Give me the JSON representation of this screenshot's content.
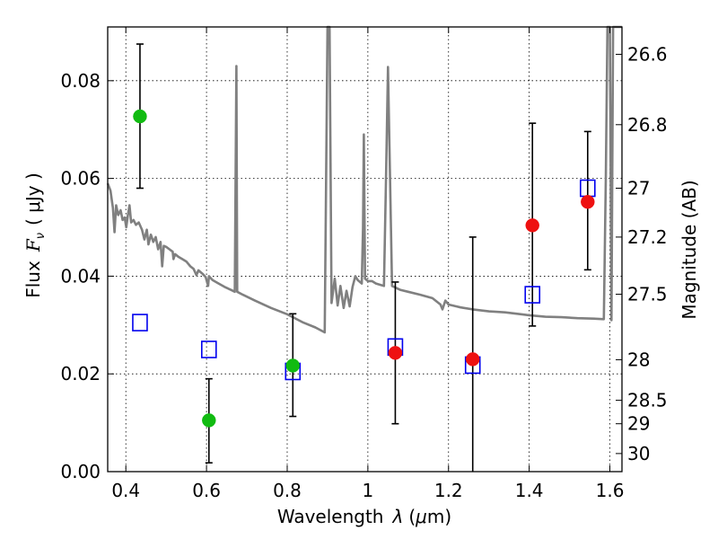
{
  "chart_data": {
    "type": "scatter",
    "xlabel": "Wavelength",
    "xlabel_symbol": "λ",
    "xlabel_unit_open": "(",
    "xlabel_unit_mu": "μ",
    "xlabel_unit_rest": "m)",
    "ylabel_text": "Flux",
    "ylabel_symbol": "F",
    "ylabel_sub": "ν",
    "ylabel_unit": "( μJy )",
    "ylabel_right": "Magnitude (AB)",
    "xlim": [
      0.355,
      1.63
    ],
    "ylim": [
      0.0,
      0.091
    ],
    "x_ticks": [
      0.4,
      0.6,
      0.8,
      1.0,
      1.2,
      1.4,
      1.6
    ],
    "x_tick_labels": [
      "0.4",
      "0.6",
      "0.8",
      "1",
      "1.2",
      "1.4",
      "1.6"
    ],
    "y_ticks": [
      0.0,
      0.02,
      0.04,
      0.06,
      0.08
    ],
    "y_tick_labels": [
      "0.00",
      "0.02",
      "0.04",
      "0.06",
      "0.08"
    ],
    "mag_ticks": [
      {
        "flux": 0.0854,
        "label": "26.6"
      },
      {
        "flux": 0.071,
        "label": "26.8"
      },
      {
        "flux": 0.058,
        "label": "27"
      },
      {
        "flux": 0.048,
        "label": "27.2"
      },
      {
        "flux": 0.0363,
        "label": "27.5"
      },
      {
        "flux": 0.0229,
        "label": "28"
      },
      {
        "flux": 0.0146,
        "label": "28.5"
      },
      {
        "flux": 0.0098,
        "label": "29"
      },
      {
        "flux": 0.0037,
        "label": "30"
      }
    ],
    "grid": true,
    "series": [
      {
        "name": "observed (green)",
        "color": "#11bb11",
        "marker": "circle",
        "points": [
          {
            "x": 0.435,
            "y": 0.0727,
            "err_lo": 0.058,
            "err_hi": 0.0875
          },
          {
            "x": 0.606,
            "y": 0.0105,
            "err_lo": 0.0018,
            "err_hi": 0.019
          },
          {
            "x": 0.814,
            "y": 0.0217,
            "err_lo": 0.0113,
            "err_hi": 0.0323
          }
        ]
      },
      {
        "name": "observed (red)",
        "color": "#ee1111",
        "marker": "circle",
        "points": [
          {
            "x": 1.068,
            "y": 0.0243,
            "err_lo": 0.0098,
            "err_hi": 0.0388
          },
          {
            "x": 1.26,
            "y": 0.023,
            "err_lo": 0.0,
            "err_hi": 0.048
          },
          {
            "x": 1.408,
            "y": 0.0504,
            "err_lo": 0.0298,
            "err_hi": 0.0713
          },
          {
            "x": 1.545,
            "y": 0.0552,
            "err_lo": 0.0413,
            "err_hi": 0.0696
          }
        ]
      },
      {
        "name": "model (blue squares)",
        "color": "#0000ee",
        "marker": "square",
        "points": [
          {
            "x": 0.435,
            "y": 0.0305
          },
          {
            "x": 0.606,
            "y": 0.025
          },
          {
            "x": 0.814,
            "y": 0.0205
          },
          {
            "x": 1.068,
            "y": 0.0255
          },
          {
            "x": 1.26,
            "y": 0.0218
          },
          {
            "x": 1.408,
            "y": 0.0362
          },
          {
            "x": 1.545,
            "y": 0.058
          }
        ]
      },
      {
        "name": "template spectrum",
        "color": "#808080",
        "marker": "line",
        "points": [
          [
            0.355,
            0.059
          ],
          [
            0.362,
            0.0575
          ],
          [
            0.368,
            0.054
          ],
          [
            0.372,
            0.049
          ],
          [
            0.376,
            0.0545
          ],
          [
            0.381,
            0.0525
          ],
          [
            0.387,
            0.0535
          ],
          [
            0.392,
            0.0515
          ],
          [
            0.397,
            0.052
          ],
          [
            0.401,
            0.05
          ],
          [
            0.405,
            0.0525
          ],
          [
            0.409,
            0.0545
          ],
          [
            0.413,
            0.051
          ],
          [
            0.419,
            0.0515
          ],
          [
            0.425,
            0.0505
          ],
          [
            0.432,
            0.051
          ],
          [
            0.44,
            0.0495
          ],
          [
            0.446,
            0.0475
          ],
          [
            0.452,
            0.0495
          ],
          [
            0.456,
            0.0465
          ],
          [
            0.462,
            0.0485
          ],
          [
            0.468,
            0.047
          ],
          [
            0.474,
            0.048
          ],
          [
            0.48,
            0.0455
          ],
          [
            0.486,
            0.047
          ],
          [
            0.49,
            0.042
          ],
          [
            0.494,
            0.0462
          ],
          [
            0.5,
            0.046
          ],
          [
            0.508,
            0.0455
          ],
          [
            0.516,
            0.045
          ],
          [
            0.518,
            0.0435
          ],
          [
            0.522,
            0.0445
          ],
          [
            0.53,
            0.044
          ],
          [
            0.54,
            0.0435
          ],
          [
            0.55,
            0.043
          ],
          [
            0.56,
            0.042
          ],
          [
            0.568,
            0.0415
          ],
          [
            0.575,
            0.0402
          ],
          [
            0.58,
            0.0412
          ],
          [
            0.59,
            0.0405
          ],
          [
            0.598,
            0.0398
          ],
          [
            0.604,
            0.038
          ],
          [
            0.606,
            0.04
          ],
          [
            0.615,
            0.0392
          ],
          [
            0.63,
            0.0385
          ],
          [
            0.645,
            0.0378
          ],
          [
            0.66,
            0.0372
          ],
          [
            0.67,
            0.0368
          ],
          [
            0.674,
            0.083
          ],
          [
            0.676,
            0.0368
          ],
          [
            0.69,
            0.0362
          ],
          [
            0.72,
            0.035
          ],
          [
            0.76,
            0.0335
          ],
          [
            0.8,
            0.0322
          ],
          [
            0.84,
            0.0305
          ],
          [
            0.87,
            0.0295
          ],
          [
            0.893,
            0.0285
          ],
          [
            0.9,
            0.091
          ],
          [
            0.905,
            0.091
          ],
          [
            0.91,
            0.0345
          ],
          [
            0.918,
            0.0395
          ],
          [
            0.925,
            0.034
          ],
          [
            0.932,
            0.038
          ],
          [
            0.94,
            0.0335
          ],
          [
            0.947,
            0.037
          ],
          [
            0.955,
            0.0338
          ],
          [
            0.962,
            0.0378
          ],
          [
            0.969,
            0.04
          ],
          [
            0.975,
            0.0392
          ],
          [
            0.985,
            0.0385
          ],
          [
            0.988,
            0.05
          ],
          [
            0.99,
            0.069
          ],
          [
            0.993,
            0.0395
          ],
          [
            1.0,
            0.039
          ],
          [
            1.01,
            0.039
          ],
          [
            1.02,
            0.0385
          ],
          [
            1.032,
            0.0382
          ],
          [
            1.04,
            0.038
          ],
          [
            1.045,
            0.06
          ],
          [
            1.05,
            0.0828
          ],
          [
            1.055,
            0.06
          ],
          [
            1.06,
            0.038
          ],
          [
            1.08,
            0.0372
          ],
          [
            1.1,
            0.0368
          ],
          [
            1.13,
            0.0362
          ],
          [
            1.16,
            0.0355
          ],
          [
            1.18,
            0.0342
          ],
          [
            1.185,
            0.0332
          ],
          [
            1.192,
            0.035
          ],
          [
            1.2,
            0.0342
          ],
          [
            1.23,
            0.0336
          ],
          [
            1.26,
            0.0332
          ],
          [
            1.3,
            0.0328
          ],
          [
            1.34,
            0.0326
          ],
          [
            1.38,
            0.0322
          ],
          [
            1.4,
            0.032
          ],
          [
            1.44,
            0.0317
          ],
          [
            1.48,
            0.0316
          ],
          [
            1.52,
            0.0314
          ],
          [
            1.56,
            0.0313
          ],
          [
            1.585,
            0.0312
          ],
          [
            1.59,
            0.06
          ],
          [
            1.594,
            0.091
          ],
          [
            1.6,
            0.091
          ],
          [
            1.604,
            0.031
          ],
          [
            1.608,
            0.091
          ],
          [
            1.63,
            0.091
          ]
        ]
      }
    ]
  }
}
